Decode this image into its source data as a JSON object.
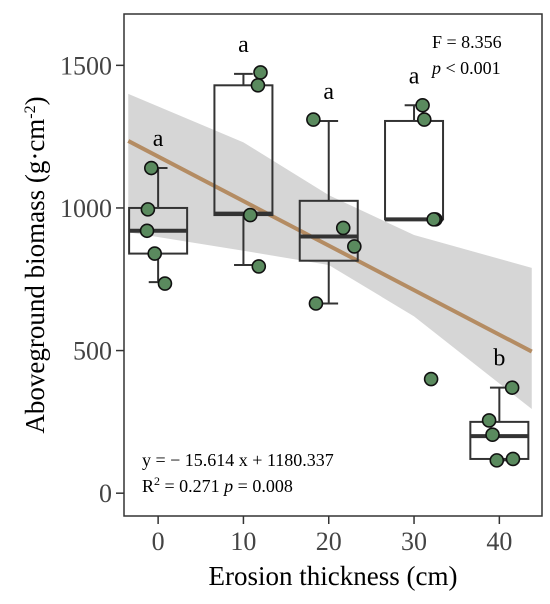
{
  "chart_data": {
    "type": "box",
    "xlabel": "Erosion thickness (cm)",
    "ylabel_main": "Aboveground biomass (g·cm",
    "ylabel_sup": "-2",
    "ylabel_close": ")",
    "xlim": [
      -4,
      45
    ],
    "ylim": [
      -80,
      1680
    ],
    "x_ticks": [
      0,
      10,
      20,
      30,
      40
    ],
    "y_ticks": [
      0,
      500,
      1000,
      1500
    ],
    "groups": [
      {
        "x": 0,
        "letter": "a",
        "whisker": [
          740,
          1140
        ],
        "box": [
          840,
          1000
        ],
        "median": 920,
        "points": [
          [
            -0.8,
            1140
          ],
          [
            -1.2,
            995
          ],
          [
            -1.3,
            920
          ],
          [
            -0.4,
            840
          ],
          [
            0.8,
            735
          ]
        ]
      },
      {
        "x": 10,
        "letter": "a",
        "whisker": [
          800,
          1470
        ],
        "box": [
          975,
          1430
        ],
        "median": 980,
        "points": [
          [
            12.0,
            1475
          ],
          [
            11.7,
            1430
          ],
          [
            10.8,
            975
          ],
          [
            11.8,
            795
          ]
        ]
      },
      {
        "x": 20,
        "letter": "a",
        "whisker": [
          665,
          1305
        ],
        "box": [
          815,
          1025
        ],
        "median": 900,
        "points": [
          [
            18.2,
            1310
          ],
          [
            21.7,
            930
          ],
          [
            23.0,
            865
          ],
          [
            18.5,
            665
          ]
        ]
      },
      {
        "x": 30,
        "letter": "a",
        "whisker": [
          960,
          1360
        ],
        "box": [
          960,
          1305
        ],
        "median": 960,
        "points": [
          [
            31.0,
            1360
          ],
          [
            31.2,
            1310
          ],
          [
            32.5,
            960
          ],
          [
            32.3,
            960
          ],
          [
            32.0,
            400
          ]
        ]
      },
      {
        "x": 40,
        "letter": "b",
        "whisker": [
          115,
          370
        ],
        "box": [
          120,
          250
        ],
        "median": 200,
        "points": [
          [
            41.5,
            370
          ],
          [
            38.8,
            255
          ],
          [
            39.2,
            205
          ],
          [
            39.7,
            115
          ],
          [
            41.6,
            120
          ]
        ]
      }
    ],
    "regression": {
      "x_range": [
        -3.5,
        43.8
      ],
      "ci_upper": [
        [
          -3.5,
          1400
        ],
        [
          10,
          1230
        ],
        [
          20,
          1045
        ],
        [
          30,
          905
        ],
        [
          43.8,
          790
        ]
      ],
      "ci_lower": [
        [
          -3.5,
          915
        ],
        [
          10,
          850
        ],
        [
          20,
          800
        ],
        [
          30,
          620
        ],
        [
          43.8,
          295
        ]
      ],
      "color": "#b48c63",
      "ci_color": "#d6d6d6"
    },
    "point_color": "#5a8a5e",
    "stat_F": "F = 8.356",
    "stat_p_italic": "p",
    "stat_p_rest": " < 0.001",
    "equation": "y = − 15.614 x + 1180.337",
    "r2_label": "R",
    "r2_sup": "2",
    "r2_value": " = 0.271  ",
    "r2_p_italic": "p",
    "r2_p_rest": " = 0.008"
  }
}
